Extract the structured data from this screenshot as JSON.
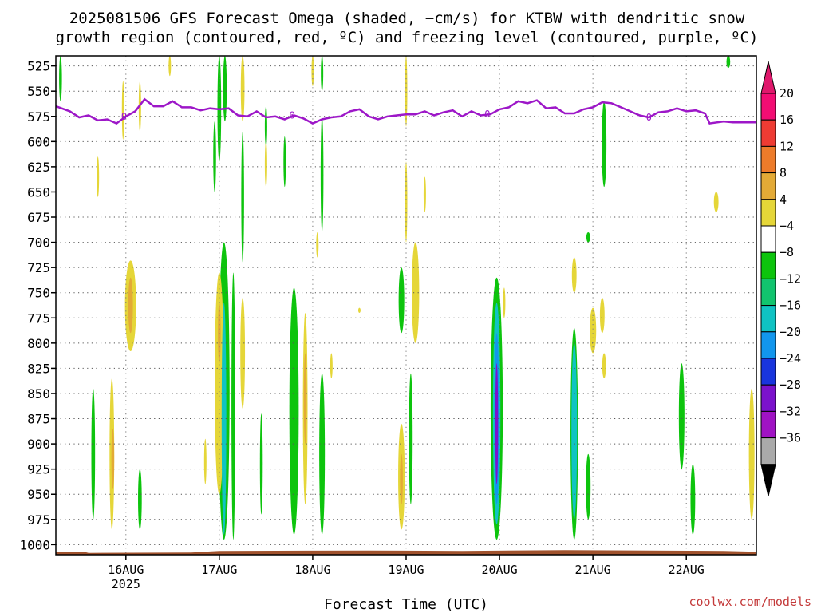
{
  "chart_data": {
    "type": "heatmap",
    "title": [
      "2025081506 GFS Forecast Omega (shaded, −cm/s) for KTBW with dendritic snow",
      "growth region (contoured, red, ºC) and freezing level (contoured, purple, ºC)"
    ],
    "xlabel": "Forecast Time (UTC)",
    "ylabel": "",
    "credit": "coolwx.com/models",
    "x_ticks": [
      {
        "day": 16.0,
        "label": "16AUG",
        "sub": "2025"
      },
      {
        "day": 17.0,
        "label": "17AUG",
        "sub": ""
      },
      {
        "day": 18.0,
        "label": "18AUG",
        "sub": ""
      },
      {
        "day": 19.0,
        "label": "19AUG",
        "sub": ""
      },
      {
        "day": 20.0,
        "label": "20AUG",
        "sub": ""
      },
      {
        "day": 21.0,
        "label": "21AUG",
        "sub": ""
      },
      {
        "day": 22.0,
        "label": "22AUG",
        "sub": ""
      }
    ],
    "x_range": [
      15.25,
      22.75
    ],
    "y_ticks": [
      "525",
      "550",
      "575",
      "600",
      "625",
      "650",
      "675",
      "700",
      "725",
      "750",
      "775",
      "800",
      "825",
      "850",
      "875",
      "900",
      "925",
      "950",
      "975",
      "1000"
    ],
    "y_range_hpa": [
      515,
      1010
    ],
    "grid": true,
    "colorbar": {
      "labels": [
        "20",
        "16",
        "12",
        "8",
        "4",
        "−4",
        "−8",
        "−12",
        "−16",
        "−20",
        "−24",
        "−28",
        "−32",
        "−36"
      ],
      "colors": [
        "#f20d73",
        "#ee3b33",
        "#ed7b2a",
        "#e3aa36",
        "#e5d638",
        "#ffffff",
        "#0dc40d",
        "#11c46e",
        "#10c3c3",
        "#1296ed",
        "#1935dd",
        "#7b12cc",
        "#a013c4",
        "#aaaaaa"
      ],
      "top_arrow_color": "#e0186c",
      "bottom_arrow_color": "#000000"
    },
    "freezing_level": {
      "color": "#9d17c8",
      "label": "0",
      "label_days": [
        15.98,
        17.78,
        19.87,
        21.6
      ],
      "points": [
        [
          15.25,
          565
        ],
        [
          15.4,
          570
        ],
        [
          15.5,
          576
        ],
        [
          15.6,
          574
        ],
        [
          15.7,
          579
        ],
        [
          15.8,
          578
        ],
        [
          15.9,
          582
        ],
        [
          16.0,
          575
        ],
        [
          16.1,
          570
        ],
        [
          16.2,
          558
        ],
        [
          16.3,
          565
        ],
        [
          16.4,
          565
        ],
        [
          16.5,
          560
        ],
        [
          16.6,
          566
        ],
        [
          16.7,
          566
        ],
        [
          16.8,
          569
        ],
        [
          16.9,
          567
        ],
        [
          17.0,
          568
        ],
        [
          17.1,
          567
        ],
        [
          17.2,
          574
        ],
        [
          17.3,
          575
        ],
        [
          17.4,
          570
        ],
        [
          17.5,
          576
        ],
        [
          17.6,
          575
        ],
        [
          17.7,
          578
        ],
        [
          17.8,
          574
        ],
        [
          17.9,
          577
        ],
        [
          18.0,
          582
        ],
        [
          18.1,
          578
        ],
        [
          18.2,
          576
        ],
        [
          18.3,
          575
        ],
        [
          18.4,
          570
        ],
        [
          18.5,
          568
        ],
        [
          18.6,
          575
        ],
        [
          18.7,
          578
        ],
        [
          18.8,
          575
        ],
        [
          18.9,
          574
        ],
        [
          19.0,
          573
        ],
        [
          19.1,
          573
        ],
        [
          19.2,
          570
        ],
        [
          19.3,
          574
        ],
        [
          19.4,
          571
        ],
        [
          19.5,
          569
        ],
        [
          19.6,
          575
        ],
        [
          19.7,
          570
        ],
        [
          19.8,
          574
        ],
        [
          19.9,
          573
        ],
        [
          20.0,
          568
        ],
        [
          20.1,
          566
        ],
        [
          20.2,
          560
        ],
        [
          20.3,
          562
        ],
        [
          20.4,
          559
        ],
        [
          20.5,
          567
        ],
        [
          20.6,
          566
        ],
        [
          20.7,
          572
        ],
        [
          20.8,
          572
        ],
        [
          20.9,
          568
        ],
        [
          21.0,
          566
        ],
        [
          21.1,
          561
        ],
        [
          21.2,
          562
        ],
        [
          21.3,
          566
        ],
        [
          21.4,
          570
        ],
        [
          21.5,
          574
        ],
        [
          21.6,
          576
        ],
        [
          21.7,
          571
        ],
        [
          21.8,
          570
        ],
        [
          21.9,
          567
        ],
        [
          22.0,
          570
        ],
        [
          22.1,
          569
        ],
        [
          22.2,
          572
        ],
        [
          22.25,
          582
        ],
        [
          22.4,
          580
        ],
        [
          22.5,
          581
        ],
        [
          22.75,
          581
        ]
      ]
    },
    "shaded_regions": [
      {
        "day": 15.3,
        "p0": 515,
        "p1": 560,
        "w": 0.03,
        "c": "#0dc40d"
      },
      {
        "day": 16.15,
        "p0": 540,
        "p1": 590,
        "w": 0.02,
        "c": "#e5d638"
      },
      {
        "day": 15.97,
        "p0": 540,
        "p1": 598,
        "w": 0.01,
        "c": "#e5d638"
      },
      {
        "day": 15.7,
        "p0": 615,
        "p1": 655,
        "w": 0.01,
        "c": "#e5d638"
      },
      {
        "day": 16.05,
        "p0": 718,
        "p1": 808,
        "w": 0.12,
        "c": "#e5d638"
      },
      {
        "day": 16.05,
        "p0": 735,
        "p1": 790,
        "w": 0.05,
        "c": "#e3aa36"
      },
      {
        "day": 15.85,
        "p0": 835,
        "p1": 985,
        "w": 0.05,
        "c": "#e5d638"
      },
      {
        "day": 15.86,
        "p0": 885,
        "p1": 945,
        "w": 0.03,
        "c": "#e3aa36"
      },
      {
        "day": 15.65,
        "p0": 845,
        "p1": 975,
        "w": 0.04,
        "c": "#0dc40d"
      },
      {
        "day": 16.15,
        "p0": 925,
        "p1": 985,
        "w": 0.04,
        "c": "#0dc40d"
      },
      {
        "day": 16.47,
        "p0": 515,
        "p1": 535,
        "w": 0.02,
        "c": "#e5d638"
      },
      {
        "day": 17.0,
        "p0": 515,
        "p1": 620,
        "w": 0.04,
        "c": "#0dc40d"
      },
      {
        "day": 17.06,
        "p0": 515,
        "p1": 580,
        "w": 0.04,
        "c": "#0dc40d"
      },
      {
        "day": 17.25,
        "p0": 515,
        "p1": 580,
        "w": 0.04,
        "c": "#e5d638"
      },
      {
        "day": 16.95,
        "p0": 580,
        "p1": 650,
        "w": 0.03,
        "c": "#0dc40d"
      },
      {
        "day": 17.25,
        "p0": 590,
        "p1": 720,
        "w": 0.03,
        "c": "#0dc40d"
      },
      {
        "day": 17.5,
        "p0": 565,
        "p1": 605,
        "w": 0.02,
        "c": "#0dc40d"
      },
      {
        "day": 17.5,
        "p0": 600,
        "p1": 645,
        "w": 0.02,
        "c": "#e5d638"
      },
      {
        "day": 17.7,
        "p0": 595,
        "p1": 645,
        "w": 0.02,
        "c": "#0dc40d"
      },
      {
        "day": 17.05,
        "p0": 700,
        "p1": 995,
        "w": 0.12,
        "c": "#0dc40d"
      },
      {
        "day": 17.0,
        "p0": 730,
        "p1": 950,
        "w": 0.1,
        "c": "#e5d638"
      },
      {
        "day": 17.05,
        "p0": 760,
        "p1": 990,
        "w": 0.05,
        "c": "#10c3c3"
      },
      {
        "day": 17.0,
        "p0": 760,
        "p1": 820,
        "w": 0.03,
        "c": "#e3aa36"
      },
      {
        "day": 16.85,
        "p0": 895,
        "p1": 940,
        "w": 0.02,
        "c": "#e5d638"
      },
      {
        "day": 17.25,
        "p0": 755,
        "p1": 865,
        "w": 0.05,
        "c": "#e5d638"
      },
      {
        "day": 17.15,
        "p0": 730,
        "p1": 995,
        "w": 0.04,
        "c": "#0dc40d"
      },
      {
        "day": 17.45,
        "p0": 870,
        "p1": 970,
        "w": 0.03,
        "c": "#0dc40d"
      },
      {
        "day": 18.0,
        "p0": 515,
        "p1": 545,
        "w": 0.02,
        "c": "#e5d638"
      },
      {
        "day": 18.1,
        "p0": 575,
        "p1": 690,
        "w": 0.03,
        "c": "#0dc40d"
      },
      {
        "day": 18.1,
        "p0": 515,
        "p1": 550,
        "w": 0.02,
        "c": "#0dc40d"
      },
      {
        "day": 18.05,
        "p0": 690,
        "p1": 715,
        "w": 0.01,
        "c": "#e5d638"
      },
      {
        "day": 17.8,
        "p0": 745,
        "p1": 990,
        "w": 0.1,
        "c": "#0dc40d"
      },
      {
        "day": 17.92,
        "p0": 770,
        "p1": 960,
        "w": 0.05,
        "c": "#e5d638"
      },
      {
        "day": 17.92,
        "p0": 810,
        "p1": 900,
        "w": 0.03,
        "c": "#e3aa36"
      },
      {
        "day": 18.1,
        "p0": 830,
        "p1": 990,
        "w": 0.06,
        "c": "#0dc40d"
      },
      {
        "day": 18.2,
        "p0": 810,
        "p1": 835,
        "w": 0.02,
        "c": "#e5d638"
      },
      {
        "day": 18.5,
        "p0": 765,
        "p1": 770,
        "w": 0.02,
        "c": "#e5d638"
      },
      {
        "day": 19.0,
        "p0": 515,
        "p1": 585,
        "w": 0.02,
        "c": "#e5d638"
      },
      {
        "day": 19.0,
        "p0": 620,
        "p1": 700,
        "w": 0.02,
        "c": "#e5d638"
      },
      {
        "day": 19.2,
        "p0": 635,
        "p1": 670,
        "w": 0.01,
        "c": "#e5d638"
      },
      {
        "day": 19.1,
        "p0": 700,
        "p1": 800,
        "w": 0.08,
        "c": "#e5d638"
      },
      {
        "day": 18.95,
        "p0": 725,
        "p1": 790,
        "w": 0.06,
        "c": "#0dc40d"
      },
      {
        "day": 18.95,
        "p0": 880,
        "p1": 985,
        "w": 0.07,
        "c": "#e5d638"
      },
      {
        "day": 18.95,
        "p0": 910,
        "p1": 960,
        "w": 0.03,
        "c": "#e3aa36"
      },
      {
        "day": 19.05,
        "p0": 830,
        "p1": 960,
        "w": 0.04,
        "c": "#0dc40d"
      },
      {
        "day": 19.97,
        "p0": 735,
        "p1": 995,
        "w": 0.13,
        "c": "#0dc40d"
      },
      {
        "day": 19.97,
        "p0": 760,
        "p1": 980,
        "w": 0.08,
        "c": "#10c3c3"
      },
      {
        "day": 19.97,
        "p0": 790,
        "p1": 960,
        "w": 0.05,
        "c": "#1296ed"
      },
      {
        "day": 19.97,
        "p0": 820,
        "p1": 940,
        "w": 0.03,
        "c": "#7b12cc"
      },
      {
        "day": 20.05,
        "p0": 745,
        "p1": 775,
        "w": 0.02,
        "c": "#e5d638"
      },
      {
        "day": 20.8,
        "p0": 715,
        "p1": 750,
        "w": 0.05,
        "c": "#e5d638"
      },
      {
        "day": 20.95,
        "p0": 690,
        "p1": 700,
        "w": 0.04,
        "c": "#0dc40d"
      },
      {
        "day": 20.8,
        "p0": 785,
        "p1": 995,
        "w": 0.08,
        "c": "#0dc40d"
      },
      {
        "day": 20.8,
        "p0": 800,
        "p1": 975,
        "w": 0.06,
        "c": "#10c3c3"
      },
      {
        "day": 20.95,
        "p0": 910,
        "p1": 975,
        "w": 0.05,
        "c": "#0dc40d"
      },
      {
        "day": 21.0,
        "p0": 765,
        "p1": 810,
        "w": 0.07,
        "c": "#e5d638"
      },
      {
        "day": 21.1,
        "p0": 755,
        "p1": 790,
        "w": 0.05,
        "c": "#e5d638"
      },
      {
        "day": 21.12,
        "p0": 810,
        "p1": 835,
        "w": 0.04,
        "c": "#e5d638"
      },
      {
        "day": 21.12,
        "p0": 560,
        "p1": 645,
        "w": 0.05,
        "c": "#0dc40d"
      },
      {
        "day": 21.95,
        "p0": 820,
        "p1": 925,
        "w": 0.06,
        "c": "#0dc40d"
      },
      {
        "day": 22.07,
        "p0": 920,
        "p1": 990,
        "w": 0.05,
        "c": "#0dc40d"
      },
      {
        "day": 22.32,
        "p0": 650,
        "p1": 670,
        "w": 0.05,
        "c": "#e5d638"
      },
      {
        "day": 22.45,
        "p0": 515,
        "p1": 527,
        "w": 0.04,
        "c": "#0dc40d"
      },
      {
        "day": 22.7,
        "p0": 845,
        "p1": 975,
        "w": 0.06,
        "c": "#e5d638"
      }
    ]
  }
}
